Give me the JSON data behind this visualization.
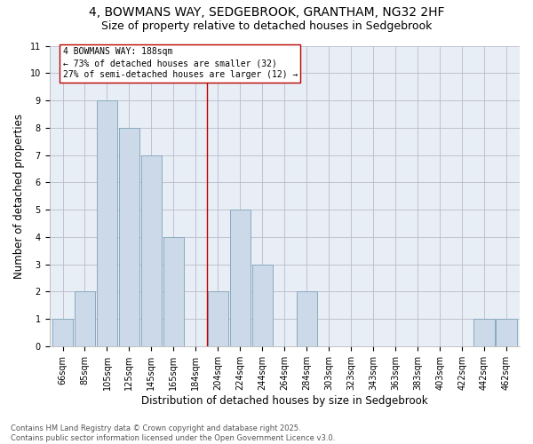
{
  "title_line1": "4, BOWMANS WAY, SEDGEBROOK, GRANTHAM, NG32 2HF",
  "title_line2": "Size of property relative to detached houses in Sedgebrook",
  "xlabel": "Distribution of detached houses by size in Sedgebrook",
  "ylabel": "Number of detached properties",
  "categories": [
    "66sqm",
    "85sqm",
    "105sqm",
    "125sqm",
    "145sqm",
    "165sqm",
    "184sqm",
    "204sqm",
    "224sqm",
    "244sqm",
    "264sqm",
    "284sqm",
    "303sqm",
    "323sqm",
    "343sqm",
    "363sqm",
    "383sqm",
    "403sqm",
    "422sqm",
    "442sqm",
    "462sqm"
  ],
  "values": [
    1,
    2,
    9,
    8,
    7,
    4,
    0,
    2,
    5,
    3,
    0,
    2,
    0,
    0,
    0,
    0,
    0,
    0,
    0,
    1,
    1
  ],
  "bar_color": "#ccd9e8",
  "bar_edge_color": "#8aaabf",
  "annotation_box_text": "4 BOWMANS WAY: 188sqm\n← 73% of detached houses are smaller (32)\n27% of semi-detached houses are larger (12) →",
  "vline_color": "#bb0000",
  "box_edge_color": "#bb0000",
  "ylim": [
    0,
    11
  ],
  "yticks": [
    0,
    1,
    2,
    3,
    4,
    5,
    6,
    7,
    8,
    9,
    10,
    11
  ],
  "grid_color": "#bbbbcc",
  "bg_color": "#e8eef5",
  "footnote": "Contains HM Land Registry data © Crown copyright and database right 2025.\nContains public sector information licensed under the Open Government Licence v3.0.",
  "title_fontsize": 10,
  "subtitle_fontsize": 9,
  "xlabel_fontsize": 8.5,
  "ylabel_fontsize": 8.5,
  "tick_fontsize": 7,
  "annot_fontsize": 7,
  "footnote_fontsize": 6
}
